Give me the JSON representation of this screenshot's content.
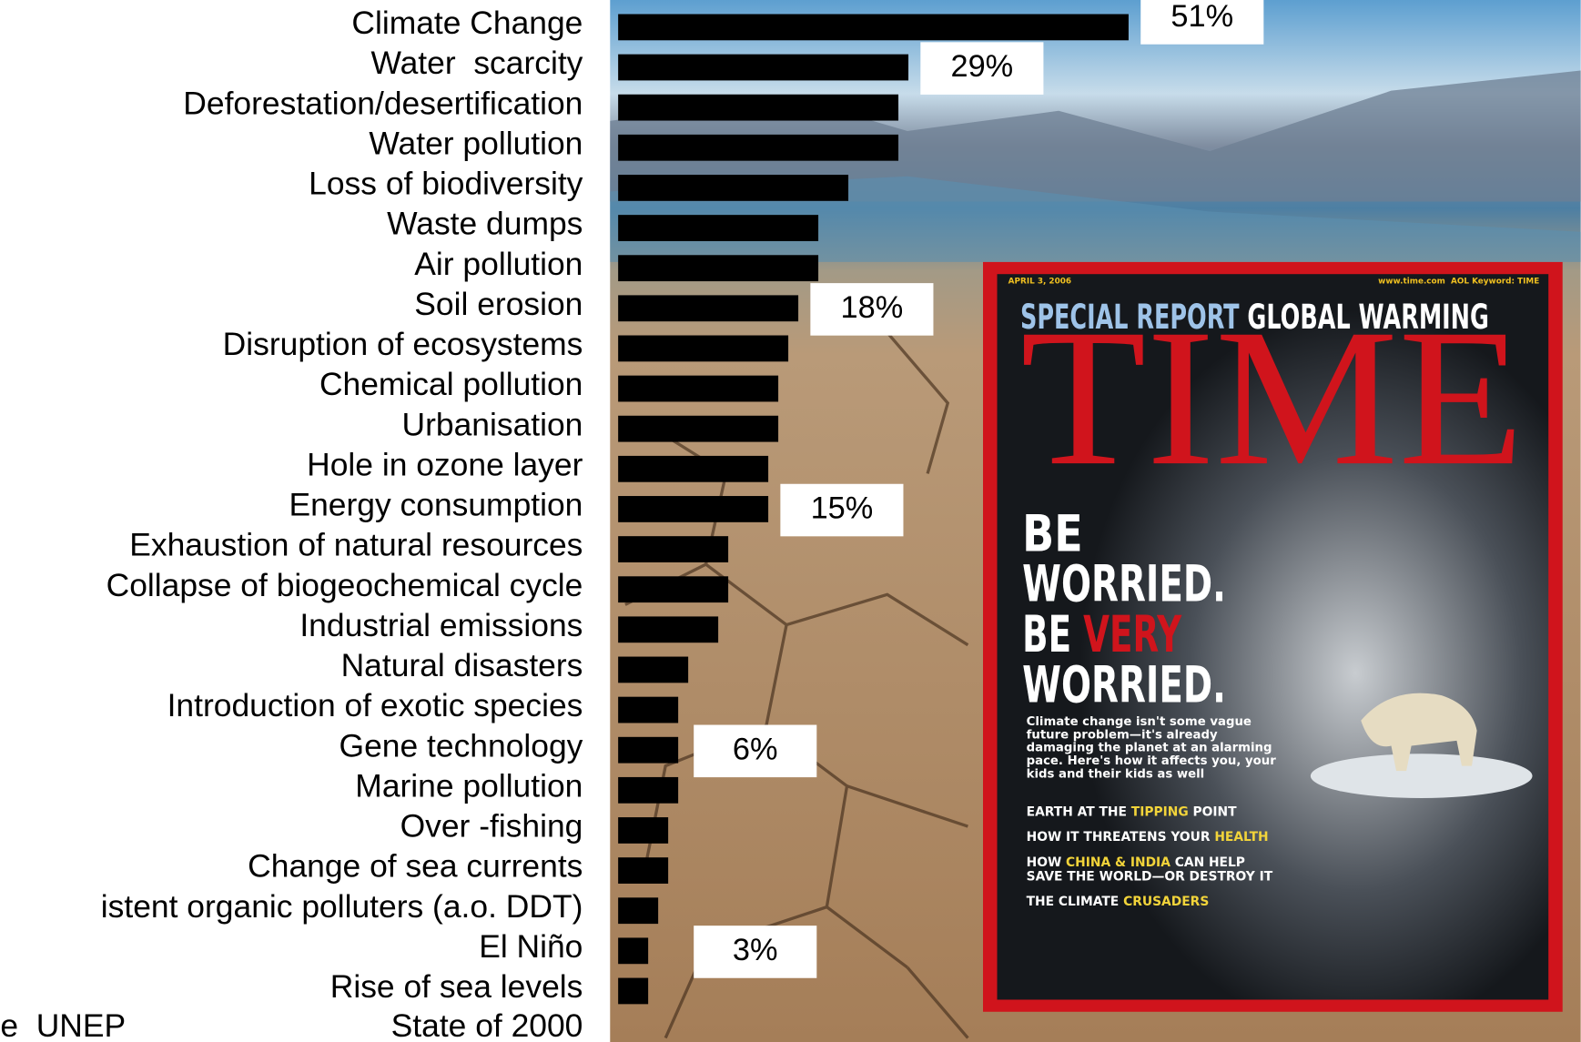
{
  "chart_data": {
    "type": "bar",
    "orientation": "horizontal",
    "color": "#000000",
    "categories": [
      "Climate Change",
      "Water  scarcity",
      "Deforestation/desertification",
      "Water pollution",
      "Loss of biodiversity",
      "Waste dumps",
      "Air pollution",
      "Soil erosion",
      "Disruption of ecosystems",
      "Chemical pollution",
      "Urbanisation",
      "Hole in ozone layer",
      "Energy consumption",
      "Exhaustion of natural resources",
      "Collapse of biogeochemical cycle",
      "Industrial emissions",
      "Natural disasters",
      "Introduction of exotic species",
      "Gene technology",
      "Marine pollution",
      "Over -fishing",
      "Change of sea currents",
      "istent organic polluters (a.o. DDT)",
      "El Niño",
      "Rise of sea levels"
    ],
    "values": [
      51,
      29,
      28,
      28,
      23,
      20,
      20,
      18,
      17,
      16,
      16,
      15,
      15,
      11,
      11,
      10,
      7,
      6,
      6,
      6,
      5,
      5,
      4,
      3,
      3
    ],
    "value_labels": [
      "51%",
      "29%",
      null,
      null,
      null,
      null,
      null,
      "18%",
      null,
      null,
      null,
      null,
      "15%",
      null,
      null,
      null,
      null,
      null,
      "6%",
      null,
      null,
      null,
      null,
      "3%",
      null
    ],
    "footer": [
      "e  UNEP",
      "State of 2000"
    ]
  },
  "cover": {
    "dateline": "APRIL 3, 2006",
    "website": "www.time.com  AOL Keyword: TIME",
    "kicker": [
      "SPECIAL REPORT ",
      "GLOBAL WARMING"
    ],
    "masthead": "TIME",
    "headline": [
      "BE",
      "WORRIED.",
      "BE ",
      "VERY",
      "WORRIED."
    ],
    "blurb": [
      "Climate change isn't some vague",
      "future problem—it's already",
      "damaging the planet at an alarming",
      "pace. Here's how it affects you, your",
      "kids and their kids as well"
    ],
    "stories": [
      [
        "EARTH AT THE ",
        "TIPPING",
        " POINT"
      ],
      [
        "HOW IT THREATENS YOUR ",
        "HEALTH"
      ],
      [
        "HOW ",
        "CHINA & INDIA",
        " CAN HELP"
      ],
      [
        "SAVE THE WORLD—OR DESTROY IT"
      ],
      [
        "THE CLIMATE ",
        "CRUSADERS"
      ]
    ]
  }
}
